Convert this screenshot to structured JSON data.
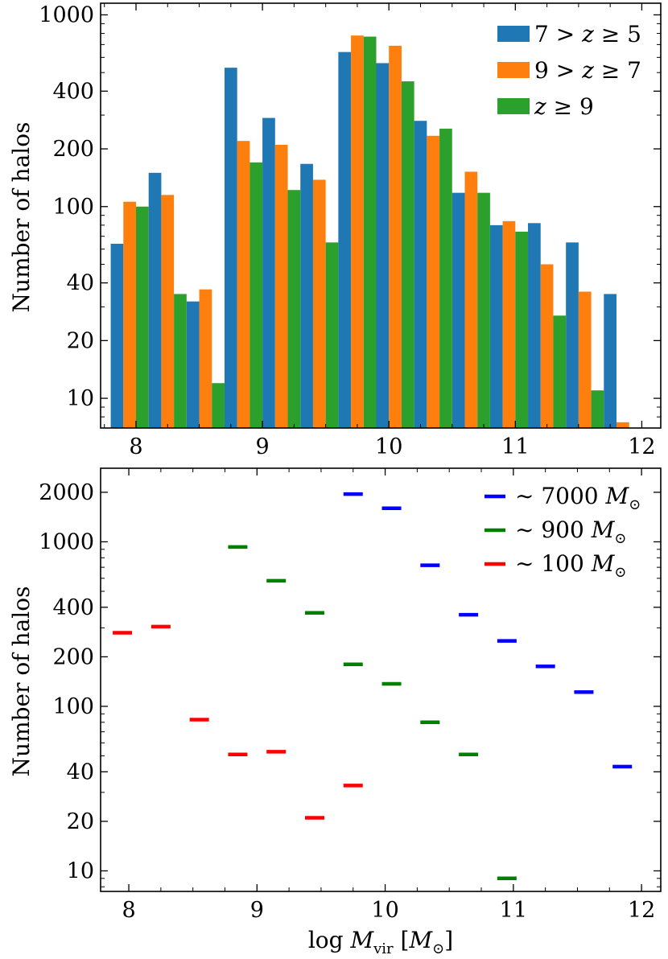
{
  "chart_data": [
    {
      "type": "bar",
      "yscale": "log",
      "ylabel": "Number of halos",
      "xlabel": "",
      "xlim": [
        7.72,
        12.15
      ],
      "ylim": [
        7,
        1150
      ],
      "xticks": [
        8,
        9,
        10,
        11,
        12
      ],
      "xtick_labels": [
        "8",
        "9",
        "10",
        "11",
        "12"
      ],
      "yticks": [
        10,
        20,
        40,
        100,
        200,
        400,
        1000
      ],
      "ytick_labels": [
        "10",
        "20",
        "40",
        "100",
        "200",
        "400",
        "1000"
      ],
      "bin_centers": [
        7.95,
        8.25,
        8.55,
        8.85,
        9.15,
        9.45,
        9.75,
        10.05,
        10.35,
        10.65,
        10.95,
        11.25,
        11.55,
        11.85
      ],
      "bin_width": 0.3,
      "legend_position": "top-right",
      "series": [
        {
          "name": "7 > z ≥ 5",
          "label_parts": [
            "7 > ",
            "z",
            " ≥ 5"
          ],
          "color": "#1f77b4",
          "values": [
            64,
            150,
            32,
            530,
            290,
            167,
            640,
            560,
            280,
            118,
            80,
            82,
            65,
            35
          ]
        },
        {
          "name": "9 > z ≥ 7",
          "label_parts": [
            "9 > ",
            "z",
            " ≥ 7"
          ],
          "color": "#ff7f0e",
          "values": [
            106,
            115,
            37,
            220,
            210,
            138,
            780,
            690,
            234,
            152,
            84,
            50,
            36,
            7.5
          ]
        },
        {
          "name": "z ≥ 9",
          "label_parts": [
            "",
            "z",
            " ≥ 9"
          ],
          "color": "#2ca02c",
          "values": [
            100,
            35,
            12,
            170,
            122,
            65,
            770,
            450,
            255,
            118,
            74,
            27,
            11,
            0
          ]
        }
      ]
    },
    {
      "type": "scatter",
      "marker": "horizontal-dash",
      "yscale": "log",
      "ylabel": "Number of halos",
      "xlabel_parts": [
        "log ",
        "M",
        "vir",
        " [",
        "M",
        "⊙",
        "]"
      ],
      "xlim": [
        7.78,
        12.15
      ],
      "ylim": [
        7.5,
        2800
      ],
      "xticks": [
        8,
        9,
        10,
        11,
        12
      ],
      "xtick_labels": [
        "8",
        "9",
        "10",
        "11",
        "12"
      ],
      "yticks": [
        10,
        20,
        40,
        100,
        200,
        400,
        1000,
        2000
      ],
      "ytick_labels": [
        "10",
        "20",
        "40",
        "100",
        "200",
        "400",
        "1000",
        "2000"
      ],
      "legend_position": "top-right",
      "series": [
        {
          "name": "~ 7000 M⊙",
          "label_parts": [
            "∼ 7000 ",
            "M",
            "⊙"
          ],
          "color": "#0000ff",
          "x": [
            9.75,
            10.05,
            10.35,
            10.65,
            10.95,
            11.25,
            11.55,
            11.85
          ],
          "y": [
            1950,
            1600,
            720,
            360,
            250,
            175,
            122,
            43
          ]
        },
        {
          "name": "~ 900 M⊙",
          "label_parts": [
            "∼ 900 ",
            "M",
            "⊙"
          ],
          "color": "#008000",
          "x": [
            8.85,
            9.15,
            9.45,
            9.75,
            10.05,
            10.35,
            10.65,
            10.95
          ],
          "y": [
            930,
            580,
            370,
            180,
            137,
            80,
            51,
            9
          ]
        },
        {
          "name": "~ 100 M⊙",
          "label_parts": [
            "∼ 100 ",
            "M",
            "⊙"
          ],
          "color": "#ff0000",
          "x": [
            7.95,
            8.25,
            8.55,
            8.85,
            9.15,
            9.45,
            9.75
          ],
          "y": [
            280,
            305,
            83,
            51,
            53,
            21,
            33
          ]
        }
      ]
    }
  ]
}
